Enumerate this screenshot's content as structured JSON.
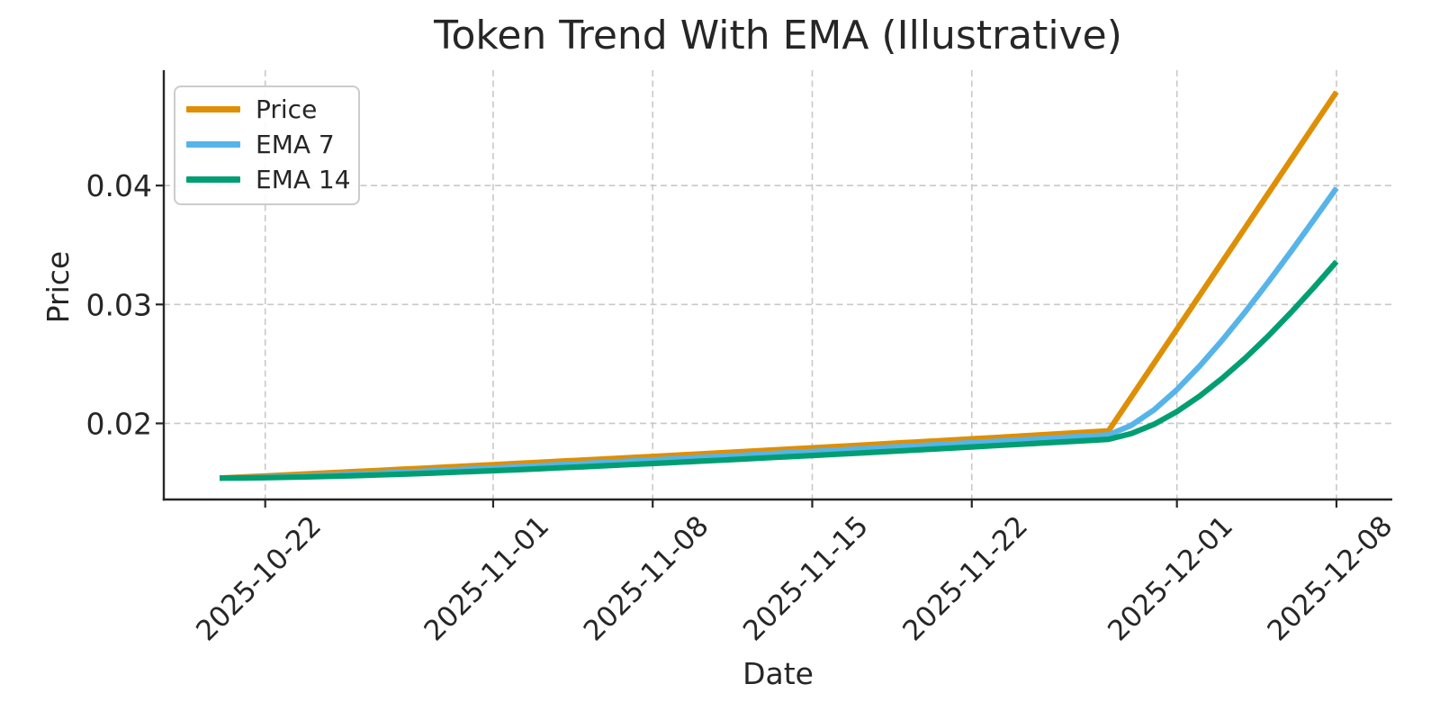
{
  "chart_data": {
    "type": "line",
    "title": "Token Trend With EMA (Illustrative)",
    "xlabel": "Date",
    "ylabel": "Price",
    "grid": true,
    "grid_style": "dashed",
    "legend_position": "upper-left",
    "ylim": [
      0.0136,
      0.0497
    ],
    "xlim_day_index": [
      -2.45,
      51.45
    ],
    "y_ticks": [
      0.02,
      0.03,
      0.04
    ],
    "y_tick_labels": [
      "0.02",
      "0.03",
      "0.04"
    ],
    "x_tick_labels": [
      "2025-10-22",
      "2025-11-01",
      "2025-11-08",
      "2025-11-15",
      "2025-11-22",
      "2025-12-01",
      "2025-12-08"
    ],
    "x_tick_day_index": [
      2,
      12,
      19,
      26,
      33,
      42,
      49
    ],
    "dates": [
      "2025-10-20",
      "2025-10-21",
      "2025-10-22",
      "2025-10-23",
      "2025-10-24",
      "2025-10-25",
      "2025-10-26",
      "2025-10-27",
      "2025-10-28",
      "2025-10-29",
      "2025-10-30",
      "2025-10-31",
      "2025-11-01",
      "2025-11-02",
      "2025-11-03",
      "2025-11-04",
      "2025-11-05",
      "2025-11-06",
      "2025-11-07",
      "2025-11-08",
      "2025-11-09",
      "2025-11-10",
      "2025-11-11",
      "2025-11-12",
      "2025-11-13",
      "2025-11-14",
      "2025-11-15",
      "2025-11-16",
      "2025-11-17",
      "2025-11-18",
      "2025-11-19",
      "2025-11-20",
      "2025-11-21",
      "2025-11-22",
      "2025-11-23",
      "2025-11-24",
      "2025-11-25",
      "2025-11-26",
      "2025-11-27",
      "2025-11-28",
      "2025-11-29",
      "2025-11-30",
      "2025-12-01",
      "2025-12-02",
      "2025-12-03",
      "2025-12-04",
      "2025-12-05",
      "2025-12-06",
      "2025-12-07",
      "2025-12-08"
    ],
    "series": [
      {
        "name": "Price",
        "color": "#DE8F05",
        "values": [
          0.0154,
          0.015491,
          0.015582,
          0.015674,
          0.015767,
          0.01586,
          0.015953,
          0.016047,
          0.016142,
          0.016237,
          0.016333,
          0.01643,
          0.016526,
          0.016624,
          0.016722,
          0.016821,
          0.01692,
          0.01702,
          0.01712,
          0.017221,
          0.017323,
          0.017425,
          0.017528,
          0.017631,
          0.017735,
          0.01784,
          0.017945,
          0.018051,
          0.018157,
          0.018265,
          0.018372,
          0.018481,
          0.01859,
          0.018699,
          0.01881,
          0.018921,
          0.019032,
          0.019145,
          0.019258,
          0.019371,
          0.022221,
          0.025071,
          0.027921,
          0.030771,
          0.033621,
          0.036471,
          0.039321,
          0.042171,
          0.045021,
          0.047871
        ]
      },
      {
        "name": "EMA 7",
        "color": "#56B4E9",
        "values": [
          0.0154,
          0.015423,
          0.015463,
          0.015516,
          0.015579,
          0.015649,
          0.015725,
          0.015806,
          0.01589,
          0.015977,
          0.016066,
          0.016157,
          0.016249,
          0.016343,
          0.016438,
          0.016534,
          0.016631,
          0.016728,
          0.016826,
          0.016925,
          0.017025,
          0.017125,
          0.017226,
          0.017327,
          0.017429,
          0.017532,
          0.017635,
          0.017739,
          0.017844,
          0.017949,
          0.018055,
          0.018162,
          0.018269,
          0.018377,
          0.018485,
          0.018594,
          0.018704,
          0.018814,
          0.018925,
          0.019037,
          0.019833,
          0.021143,
          0.022838,
          0.024821,
          0.027021,
          0.029384,
          0.031868,
          0.034444,
          0.037088,
          0.039784
        ]
      },
      {
        "name": "EMA 14",
        "color": "#029E73",
        "values": [
          0.0154,
          0.015412,
          0.015435,
          0.015467,
          0.015507,
          0.015554,
          0.015607,
          0.015666,
          0.015729,
          0.015797,
          0.015868,
          0.015943,
          0.016021,
          0.016101,
          0.016184,
          0.016269,
          0.016356,
          0.016445,
          0.016535,
          0.016626,
          0.016719,
          0.016813,
          0.016908,
          0.017004,
          0.017101,
          0.0172,
          0.017299,
          0.017399,
          0.0175,
          0.017602,
          0.017705,
          0.017808,
          0.017912,
          0.018017,
          0.018123,
          0.018229,
          0.018336,
          0.018444,
          0.018553,
          0.018662,
          0.019137,
          0.019928,
          0.020994,
          0.022298,
          0.023808,
          0.025496,
          0.027339,
          0.029316,
          0.03141,
          0.033605
        ]
      }
    ],
    "style": {
      "background": "#ffffff",
      "grid_color": "#c8c8c8",
      "spine_color": "#262626",
      "text_color": "#262626",
      "legend_border_color": "#cccccc",
      "line_width": 6.2
    }
  },
  "legend": {
    "items": [
      {
        "label": "Price"
      },
      {
        "label": "EMA 7"
      },
      {
        "label": "EMA 14"
      }
    ]
  }
}
